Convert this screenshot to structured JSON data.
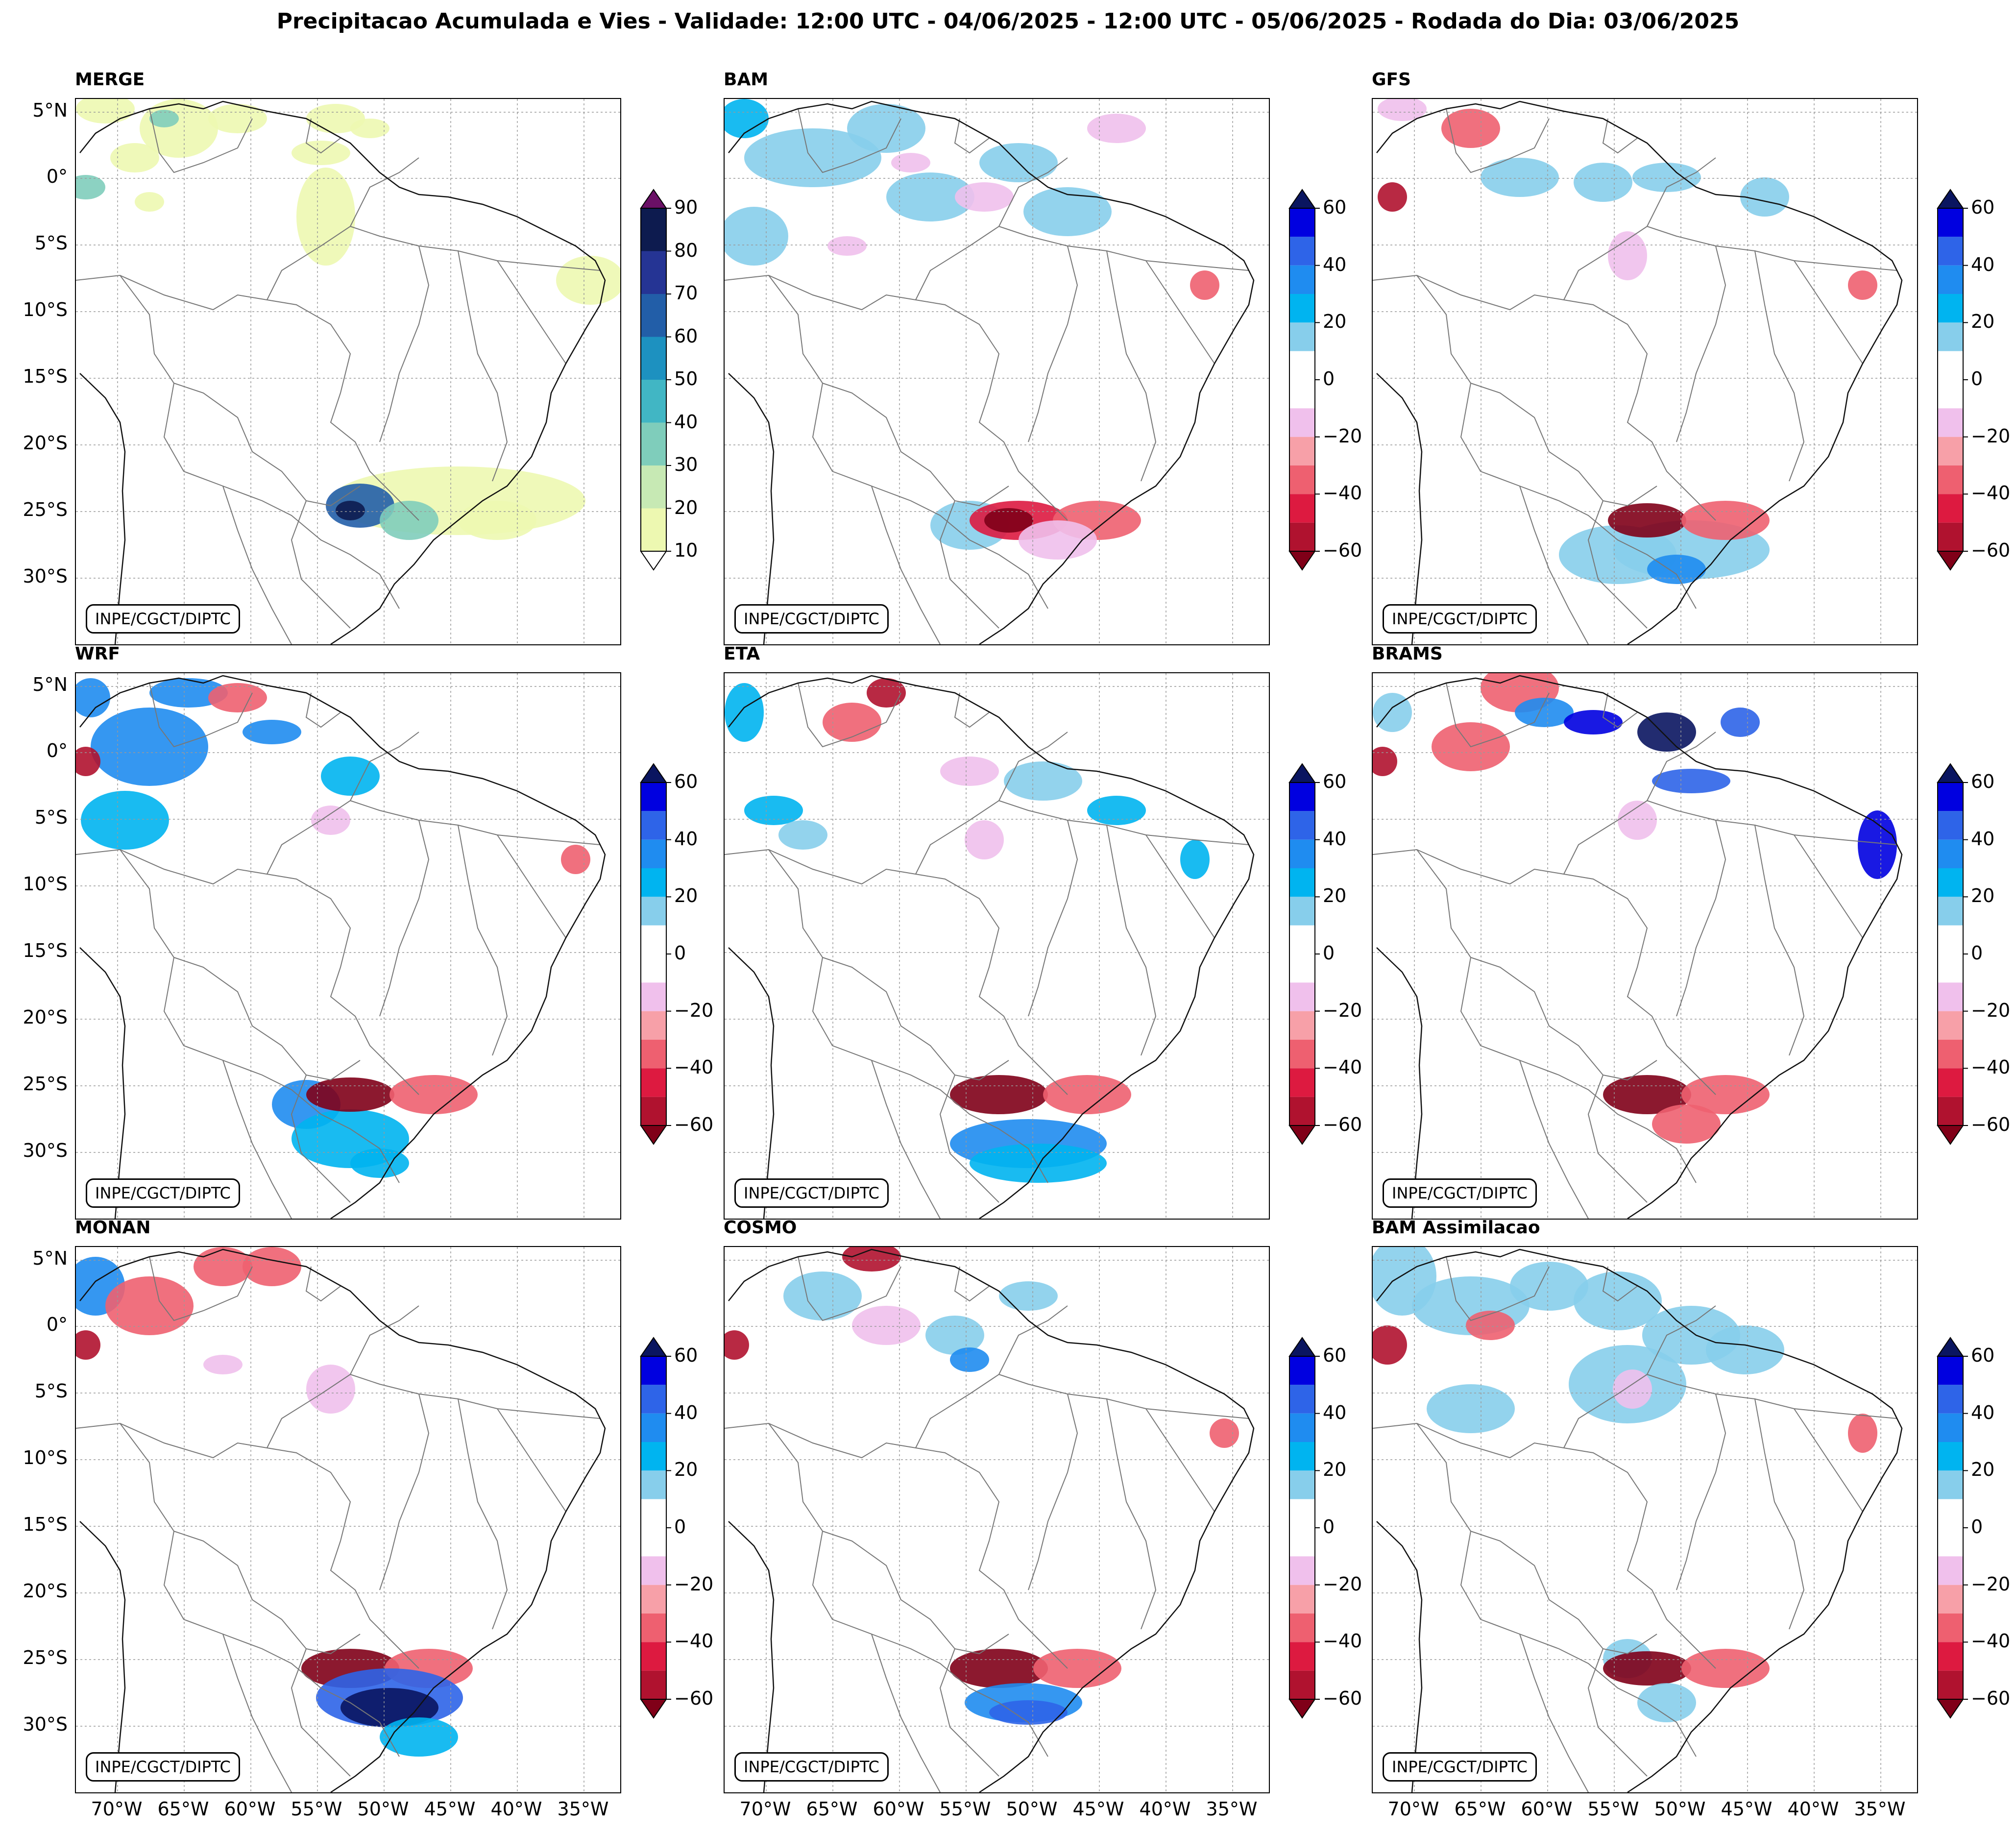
{
  "title": "Precipitacao Acumulada e Vies - Validade: 12:00 UTC - 04/06/2025 - 12:00 UTC - 05/06/2025 - Rodada do Dia: 03/06/2025",
  "credit": "INPE/CGCT/DIPTC",
  "lat_labels": [
    "5°N",
    "0°",
    "5°S",
    "10°S",
    "15°S",
    "20°S",
    "25°S",
    "30°S"
  ],
  "lon_labels": [
    "70°W",
    "65°W",
    "60°W",
    "55°W",
    "50°W",
    "45°W",
    "40°W",
    "35°W"
  ],
  "colorbar_precip": {
    "ticks": [
      "90",
      "80",
      "70",
      "60",
      "50",
      "40",
      "30",
      "20",
      "10"
    ],
    "colors": [
      "#6a1066",
      "#0d1b4f",
      "#253494",
      "#225ea8",
      "#1d91c0",
      "#41b6c4",
      "#7fcdbb",
      "#c7e9b4",
      "#edf8b1"
    ]
  },
  "colorbar_bias": {
    "ticks": [
      "60",
      "40",
      "20",
      "0",
      "−20",
      "−40",
      "−60"
    ],
    "colors": [
      "#0a1560",
      "#0000e0",
      "#2e64e8",
      "#1f8cf0",
      "#00b4f0",
      "#87ceeb",
      "#ffffff",
      "#ffffff",
      "#f0c0ec",
      "#f7a0a8",
      "#ee6070",
      "#dd1a40",
      "#b0122f",
      "#800018"
    ]
  },
  "panels": [
    {
      "name": "MERGE",
      "type": "precip"
    },
    {
      "name": "BAM",
      "type": "bias"
    },
    {
      "name": "GFS",
      "type": "bias"
    },
    {
      "name": "WRF",
      "type": "bias"
    },
    {
      "name": "ETA",
      "type": "bias"
    },
    {
      "name": "BRAMS",
      "type": "bias"
    },
    {
      "name": "MONAN",
      "type": "bias"
    },
    {
      "name": "COSMO",
      "type": "bias"
    },
    {
      "name": "BAM Assimilacao",
      "type": "bias"
    }
  ]
}
